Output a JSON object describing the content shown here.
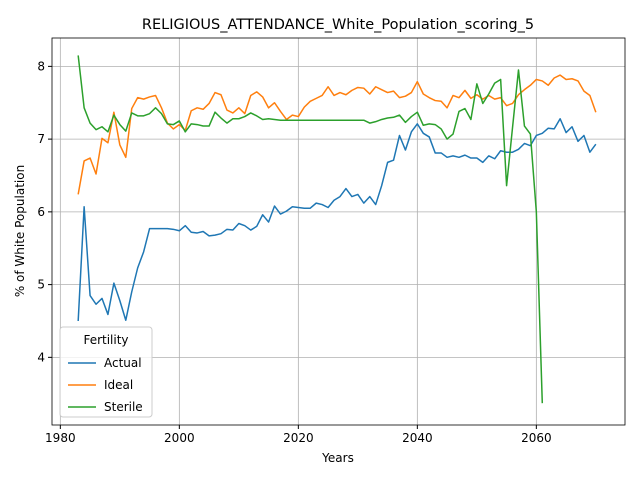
{
  "chart_data": {
    "type": "line",
    "title": "RELIGIOUS_ATTENDANCE_White_Population_scoring_5",
    "xlabel": "Years",
    "ylabel": "% of White Population",
    "legend_title": "Fertility",
    "legend": "lower left",
    "grid": true,
    "xlim": [
      1978.6,
      2074.9
    ],
    "ylim": [
      3.07,
      8.39
    ],
    "xticks": [
      1980,
      2000,
      2020,
      2040,
      2060
    ],
    "yticks": [
      4,
      5,
      6,
      7,
      8
    ],
    "x": [
      1983,
      1984,
      1985,
      1986,
      1987,
      1988,
      1989,
      1990,
      1991,
      1992,
      1993,
      1994,
      1995,
      1996,
      1997,
      1998,
      1999,
      2000,
      2001,
      2002,
      2003,
      2004,
      2005,
      2006,
      2007,
      2008,
      2009,
      2010,
      2011,
      2012,
      2013,
      2014,
      2015,
      2016,
      2017,
      2018,
      2019,
      2020,
      2021,
      2022,
      2023,
      2024,
      2025,
      2026,
      2027,
      2028,
      2029,
      2030,
      2031,
      2032,
      2033,
      2034,
      2035,
      2036,
      2037,
      2038,
      2039,
      2040,
      2041,
      2042,
      2043,
      2044,
      2045,
      2046,
      2047,
      2048,
      2049,
      2050,
      2051,
      2052,
      2053,
      2054,
      2055,
      2056,
      2057,
      2058,
      2059,
      2060,
      2061,
      2062,
      2063,
      2064,
      2065,
      2066,
      2067,
      2068,
      2069,
      2070
    ],
    "series": [
      {
        "name": "Actual",
        "color": "#1f77b4",
        "values": [
          4.5,
          6.07,
          4.85,
          4.73,
          4.81,
          4.59,
          5.02,
          4.78,
          4.51,
          4.9,
          5.23,
          5.45,
          5.77,
          5.77,
          5.77,
          5.77,
          5.76,
          5.74,
          5.81,
          5.72,
          5.71,
          5.73,
          5.67,
          5.68,
          5.7,
          5.76,
          5.75,
          5.84,
          5.81,
          5.75,
          5.8,
          5.96,
          5.86,
          6.08,
          5.97,
          6.01,
          6.07,
          6.06,
          6.05,
          6.05,
          6.12,
          6.1,
          6.06,
          6.16,
          6.21,
          6.32,
          6.21,
          6.24,
          6.12,
          6.21,
          6.1,
          6.36,
          6.68,
          6.71,
          7.05,
          6.85,
          7.1,
          7.21,
          7.08,
          7.03,
          6.81,
          6.81,
          6.75,
          6.77,
          6.75,
          6.78,
          6.74,
          6.74,
          6.68,
          6.77,
          6.73,
          6.84,
          6.82,
          6.82,
          6.86,
          6.94,
          6.91,
          7.05,
          7.08,
          7.15,
          7.14,
          7.28,
          7.09,
          7.17,
          6.97,
          7.05,
          6.82,
          6.93
        ]
      },
      {
        "name": "Ideal",
        "color": "#ff7f0e",
        "values": [
          6.24,
          6.7,
          6.74,
          6.52,
          7.01,
          6.95,
          7.37,
          6.92,
          6.75,
          7.42,
          7.57,
          7.55,
          7.58,
          7.6,
          7.43,
          7.22,
          7.14,
          7.2,
          7.12,
          7.39,
          7.43,
          7.41,
          7.49,
          7.64,
          7.61,
          7.4,
          7.36,
          7.43,
          7.35,
          7.6,
          7.65,
          7.58,
          7.43,
          7.5,
          7.38,
          7.27,
          7.33,
          7.31,
          7.44,
          7.52,
          7.56,
          7.6,
          7.72,
          7.6,
          7.64,
          7.61,
          7.67,
          7.71,
          7.7,
          7.62,
          7.72,
          7.68,
          7.64,
          7.66,
          7.57,
          7.59,
          7.64,
          7.79,
          7.62,
          7.57,
          7.53,
          7.52,
          7.43,
          7.6,
          7.57,
          7.67,
          7.56,
          7.61,
          7.55,
          7.6,
          7.55,
          7.57,
          7.46,
          7.49,
          7.61,
          7.68,
          7.74,
          7.82,
          7.8,
          7.74,
          7.84,
          7.88,
          7.82,
          7.83,
          7.8,
          7.66,
          7.6,
          7.37
        ]
      },
      {
        "name": "Sterile",
        "color": "#2ca02c",
        "values": [
          8.15,
          7.43,
          7.22,
          7.13,
          7.17,
          7.1,
          7.33,
          7.2,
          7.11,
          7.36,
          7.32,
          7.32,
          7.35,
          7.43,
          7.35,
          7.21,
          7.2,
          7.25,
          7.1,
          7.21,
          7.2,
          7.18,
          7.18,
          7.37,
          7.29,
          7.22,
          7.28,
          7.28,
          7.31,
          7.36,
          7.32,
          7.27,
          7.28,
          7.27,
          7.26,
          7.26,
          7.26,
          7.26,
          7.26,
          7.26,
          7.26,
          7.26,
          7.26,
          7.26,
          7.26,
          7.26,
          7.26,
          7.26,
          7.26,
          7.22,
          7.24,
          7.27,
          7.29,
          7.3,
          7.33,
          7.23,
          7.31,
          7.37,
          7.19,
          7.21,
          7.2,
          7.14,
          7.0,
          7.07,
          7.38,
          7.42,
          7.27,
          7.76,
          7.49,
          7.62,
          7.77,
          7.82,
          6.36,
          7.16,
          7.95,
          7.18,
          7.07,
          6.0,
          3.37,
          null,
          null,
          null,
          null,
          null,
          null,
          null,
          null,
          null
        ]
      }
    ]
  }
}
